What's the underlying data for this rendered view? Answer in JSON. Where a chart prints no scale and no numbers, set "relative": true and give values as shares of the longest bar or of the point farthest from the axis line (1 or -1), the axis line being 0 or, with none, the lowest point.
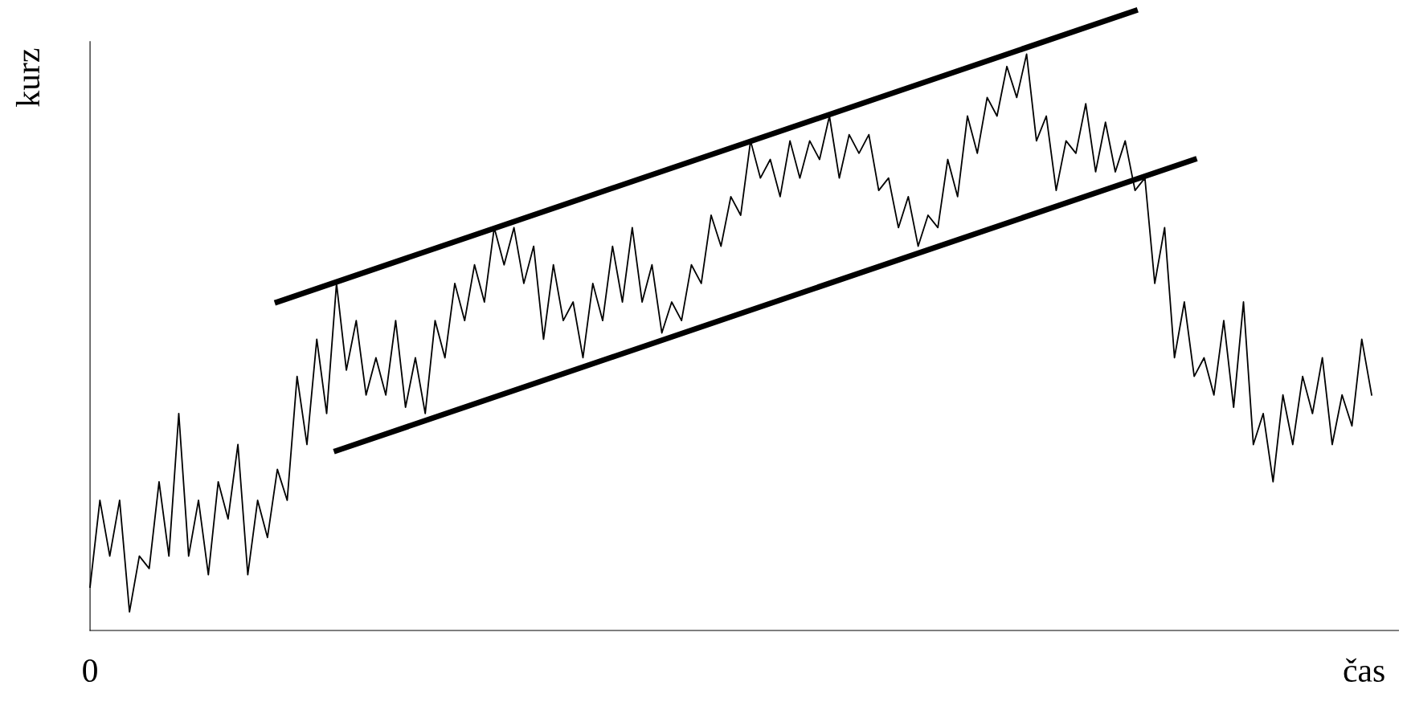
{
  "chart_data": {
    "type": "line",
    "relative": true,
    "xlabel": "čas",
    "ylabel": "kurz",
    "annotations": [
      "0"
    ],
    "marker": "none",
    "categories": [
      null,
      null,
      null,
      null,
      null,
      null,
      null,
      null,
      null,
      null,
      null,
      null,
      null,
      null,
      null,
      null,
      null,
      null,
      null,
      null,
      null,
      null,
      null,
      null,
      null,
      null,
      null,
      null,
      null,
      null,
      null,
      null,
      null,
      null,
      null,
      null,
      null,
      null,
      null,
      null,
      null,
      null,
      null,
      null,
      null,
      null,
      null,
      null,
      null,
      null,
      null,
      null,
      null,
      null,
      null,
      null,
      null,
      null,
      null,
      null,
      null,
      null,
      null,
      null,
      null,
      null,
      null,
      null,
      null,
      null,
      null,
      null,
      null,
      null,
      null,
      null,
      null,
      null,
      null,
      null,
      null,
      null,
      null,
      null,
      null,
      null,
      null,
      null,
      null,
      null,
      null,
      null,
      null,
      null,
      null,
      null,
      null,
      null,
      null,
      null,
      null,
      null,
      null,
      null,
      null,
      null,
      null,
      null,
      null,
      null,
      null,
      null,
      null,
      null,
      null,
      null,
      null,
      null,
      null,
      null,
      null,
      null,
      null,
      null,
      null,
      null,
      null,
      null,
      null,
      null,
      null
    ],
    "series": [
      {
        "color": "#000000",
        "values": [
          0.07,
          0.21,
          0.12,
          0.21,
          0.03,
          0.12,
          0.1,
          0.24,
          0.12,
          0.35,
          0.12,
          0.21,
          0.09,
          0.24,
          0.18,
          0.3,
          0.09,
          0.21,
          0.15,
          0.26,
          0.21,
          0.41,
          0.3,
          0.47,
          0.35,
          0.56,
          0.42,
          0.5,
          0.38,
          0.44,
          0.38,
          0.5,
          0.36,
          0.44,
          0.35,
          0.5,
          0.44,
          0.56,
          0.5,
          0.59,
          0.53,
          0.65,
          0.59,
          0.65,
          0.56,
          0.62,
          0.47,
          0.59,
          0.5,
          0.53,
          0.44,
          0.56,
          0.5,
          0.62,
          0.53,
          0.65,
          0.53,
          0.59,
          0.48,
          0.53,
          0.5,
          0.59,
          0.56,
          0.67,
          0.62,
          0.7,
          0.67,
          0.79,
          0.73,
          0.76,
          0.7,
          0.79,
          0.73,
          0.79,
          0.76,
          0.83,
          0.73,
          0.8,
          0.77,
          0.8,
          0.71,
          0.73,
          0.65,
          0.7,
          0.62,
          0.67,
          0.65,
          0.76,
          0.7,
          0.83,
          0.77,
          0.86,
          0.83,
          0.91,
          0.86,
          0.93,
          0.79,
          0.83,
          0.71,
          0.79,
          0.77,
          0.85,
          0.74,
          0.82,
          0.74,
          0.79,
          0.71,
          0.73,
          0.56,
          0.65,
          0.44,
          0.53,
          0.41,
          0.44,
          0.38,
          0.5,
          0.36,
          0.53,
          0.3,
          0.35,
          0.24,
          0.38,
          0.3,
          0.41,
          0.35,
          0.44,
          0.3,
          0.38,
          0.33,
          0.47,
          0.38
        ]
      },
      {
        "type": "line",
        "color": "#000000",
        "values": [
          null,
          null,
          null,
          null,
          null,
          null,
          null,
          null,
          null,
          null,
          null,
          null,
          null,
          null,
          null,
          null,
          null,
          null,
          null,
          0.53,
          null,
          null,
          null,
          null,
          null,
          null,
          null,
          null,
          null,
          null,
          null,
          null,
          null,
          null,
          null,
          null,
          null,
          null,
          null,
          null,
          null,
          null,
          null,
          null,
          null,
          null,
          null,
          null,
          null,
          null,
          null,
          null,
          null,
          null,
          null,
          null,
          null,
          null,
          null,
          null,
          null,
          null,
          null,
          null,
          null,
          null,
          null,
          null,
          null,
          null,
          null,
          null,
          null,
          null,
          null,
          null,
          null,
          null,
          null,
          null,
          null,
          null,
          null,
          null,
          null,
          null,
          null,
          null,
          null,
          null,
          null,
          null,
          null,
          null,
          null,
          null,
          null,
          null,
          null,
          null,
          null,
          null,
          null,
          null,
          null,
          null,
          1.0,
          null,
          null,
          null,
          null,
          null,
          null,
          null,
          null,
          null,
          null,
          null,
          null,
          null,
          null,
          null,
          null,
          null,
          null,
          null,
          null,
          null,
          null,
          null,
          null
        ]
      },
      {
        "type": "line",
        "color": "#000000",
        "values": [
          null,
          null,
          null,
          null,
          null,
          null,
          null,
          null,
          null,
          null,
          null,
          null,
          null,
          null,
          null,
          null,
          null,
          null,
          null,
          null,
          null,
          null,
          null,
          null,
          null,
          0.29,
          null,
          null,
          null,
          null,
          null,
          null,
          null,
          null,
          null,
          null,
          null,
          null,
          null,
          null,
          null,
          null,
          null,
          null,
          null,
          null,
          null,
          null,
          null,
          null,
          null,
          null,
          null,
          null,
          null,
          null,
          null,
          null,
          null,
          null,
          null,
          null,
          null,
          null,
          null,
          null,
          null,
          null,
          null,
          null,
          null,
          null,
          null,
          null,
          null,
          null,
          null,
          null,
          null,
          null,
          null,
          null,
          null,
          null,
          null,
          null,
          null,
          null,
          null,
          null,
          null,
          null,
          null,
          null,
          null,
          null,
          null,
          null,
          null,
          null,
          null,
          null,
          null,
          null,
          null,
          null,
          null,
          null,
          null,
          null,
          null,
          null,
          0.76,
          null,
          null,
          null,
          null,
          null,
          null,
          null,
          null,
          null,
          null,
          null,
          null,
          null,
          null,
          null,
          null,
          null,
          null
        ]
      }
    ]
  }
}
